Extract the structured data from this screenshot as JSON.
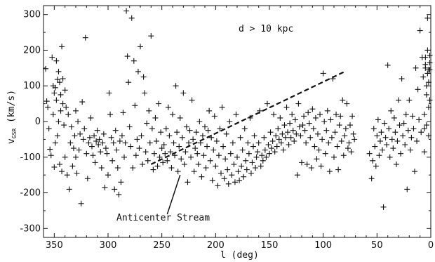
{
  "chart_data": {
    "type": "scatter",
    "title": "",
    "xlabel": "l (deg)",
    "ylabel_main": "v",
    "ylabel_sub": "GSR",
    "ylabel_unit": " (km/s)",
    "xlim": [
      360,
      0
    ],
    "ylim": [
      -325,
      325
    ],
    "x_reversed": true,
    "xticks": [
      350,
      300,
      250,
      200,
      150,
      100,
      50,
      0
    ],
    "yticks": [
      300,
      200,
      100,
      0,
      -100,
      -200,
      -300
    ],
    "grid": false,
    "marker": "plus",
    "color": "#111111",
    "annotations": {
      "distance_cut": "d > 10 kpc",
      "stream_label": "Anticenter Stream"
    },
    "trend_line": {
      "style": "dashed",
      "x": [
        260,
        80
      ],
      "y": [
        -120,
        140
      ]
    },
    "label_pointer": {
      "from": [
        245,
        -260
      ],
      "to": [
        233,
        -150
      ]
    },
    "points": [
      [
        358,
        148
      ],
      [
        357,
        57
      ],
      [
        356,
        40
      ],
      [
        355,
        -20
      ],
      [
        354,
        -78
      ],
      [
        353,
        -95
      ],
      [
        352,
        180
      ],
      [
        351,
        100
      ],
      [
        351,
        20
      ],
      [
        350,
        -128
      ],
      [
        350,
        80
      ],
      [
        349,
        95
      ],
      [
        349,
        -60
      ],
      [
        348,
        170
      ],
      [
        348,
        60
      ],
      [
        347,
        118
      ],
      [
        347,
        -40
      ],
      [
        346,
        140
      ],
      [
        346,
        0
      ],
      [
        345,
        110
      ],
      [
        345,
        -120
      ],
      [
        344,
        75
      ],
      [
        344,
        30
      ],
      [
        343,
        210
      ],
      [
        343,
        -140
      ],
      [
        342,
        120
      ],
      [
        342,
        50
      ],
      [
        341,
        -10
      ],
      [
        340,
        88
      ],
      [
        340,
        -100
      ],
      [
        339,
        40
      ],
      [
        338,
        -150
      ],
      [
        337,
        20
      ],
      [
        336,
        -190
      ],
      [
        335,
        -60
      ],
      [
        334,
        -15
      ],
      [
        333,
        -125
      ],
      [
        332,
        -75
      ],
      [
        331,
        -40
      ],
      [
        330,
        30
      ],
      [
        330,
        -100
      ],
      [
        329,
        -145
      ],
      [
        328,
        0
      ],
      [
        327,
        -80
      ],
      [
        326,
        -35
      ],
      [
        325,
        -230
      ],
      [
        324,
        55
      ],
      [
        323,
        -50
      ],
      [
        322,
        -20
      ],
      [
        321,
        235
      ],
      [
        320,
        -90
      ],
      [
        319,
        -160
      ],
      [
        318,
        -60
      ],
      [
        317,
        -45
      ],
      [
        316,
        10
      ],
      [
        315,
        -70
      ],
      [
        314,
        -95
      ],
      [
        313,
        -40
      ],
      [
        312,
        -115
      ],
      [
        311,
        -55
      ],
      [
        310,
        -25
      ],
      [
        309,
        -65
      ],
      [
        308,
        -50
      ],
      [
        307,
        -85
      ],
      [
        306,
        -130
      ],
      [
        305,
        -60
      ],
      [
        304,
        -35
      ],
      [
        303,
        -185
      ],
      [
        302,
        -75
      ],
      [
        301,
        -90
      ],
      [
        300,
        -150
      ],
      [
        299,
        80
      ],
      [
        298,
        20
      ],
      [
        297,
        -45
      ],
      [
        296,
        -110
      ],
      [
        295,
        -60
      ],
      [
        294,
        -190
      ],
      [
        293,
        -25
      ],
      [
        292,
        -80
      ],
      [
        291,
        -130
      ],
      [
        290,
        -205
      ],
      [
        289,
        -55
      ],
      [
        288,
        -170
      ],
      [
        287,
        -40
      ],
      [
        286,
        25
      ],
      [
        285,
        -100
      ],
      [
        284,
        -60
      ],
      [
        283,
        310
      ],
      [
        282,
        183
      ],
      [
        281,
        110
      ],
      [
        280,
        -15
      ],
      [
        279,
        -70
      ],
      [
        278,
        290
      ],
      [
        277,
        -130
      ],
      [
        276,
        170
      ],
      [
        275,
        45
      ],
      [
        274,
        -95
      ],
      [
        273,
        -50
      ],
      [
        272,
        140
      ],
      [
        271,
        -75
      ],
      [
        270,
        210
      ],
      [
        269,
        -40
      ],
      [
        268,
        -120
      ],
      [
        267,
        125
      ],
      [
        266,
        80
      ],
      [
        265,
        -85
      ],
      [
        264,
        -5
      ],
      [
        263,
        -110
      ],
      [
        262,
        30
      ],
      [
        261,
        -60
      ],
      [
        260,
        240
      ],
      [
        259,
        -20
      ],
      [
        258,
        -135
      ],
      [
        257,
        -90
      ],
      [
        256,
        10
      ],
      [
        255,
        -55
      ],
      [
        254,
        -125
      ],
      [
        253,
        50
      ],
      [
        252,
        -100
      ],
      [
        251,
        -30
      ],
      [
        250,
        -75
      ],
      [
        249,
        -115
      ],
      [
        248,
        -65
      ],
      [
        247,
        -90
      ],
      [
        246,
        -20
      ],
      [
        245,
        -110
      ],
      [
        244,
        40
      ],
      [
        243,
        -40
      ],
      [
        242,
        -85
      ],
      [
        241,
        -130
      ],
      [
        240,
        20
      ],
      [
        239,
        -60
      ],
      [
        238,
        -95
      ],
      [
        237,
        100
      ],
      [
        236,
        -30
      ],
      [
        235,
        -140
      ],
      [
        234,
        -70
      ],
      [
        233,
        10
      ],
      [
        232,
        -105
      ],
      [
        231,
        -45
      ],
      [
        230,
        80
      ],
      [
        229,
        -120
      ],
      [
        228,
        -85
      ],
      [
        227,
        -15
      ],
      [
        226,
        -170
      ],
      [
        225,
        -60
      ],
      [
        224,
        -25
      ],
      [
        223,
        -100
      ],
      [
        222,
        60
      ],
      [
        221,
        -50
      ],
      [
        220,
        -140
      ],
      [
        219,
        -75
      ],
      [
        218,
        -30
      ],
      [
        217,
        -90
      ],
      [
        216,
        -120
      ],
      [
        215,
        0
      ],
      [
        214,
        -60
      ],
      [
        213,
        -155
      ],
      [
        212,
        -40
      ],
      [
        211,
        -95
      ],
      [
        210,
        -15
      ],
      [
        209,
        -130
      ],
      [
        208,
        -70
      ],
      [
        207,
        -25
      ],
      [
        206,
        30
      ],
      [
        205,
        -110
      ],
      [
        204,
        -45
      ],
      [
        203,
        -165
      ],
      [
        202,
        -80
      ],
      [
        201,
        15
      ],
      [
        200,
        -125
      ],
      [
        199,
        -55
      ],
      [
        198,
        -180
      ],
      [
        197,
        -95
      ],
      [
        196,
        -20
      ],
      [
        195,
        -145
      ],
      [
        194,
        40
      ],
      [
        193,
        -70
      ],
      [
        192,
        -160
      ],
      [
        191,
        -105
      ],
      [
        190,
        -35
      ],
      [
        189,
        -135
      ],
      [
        188,
        -175
      ],
      [
        187,
        0
      ],
      [
        186,
        -90
      ],
      [
        185,
        -150
      ],
      [
        184,
        -60
      ],
      [
        183,
        -120
      ],
      [
        182,
        -170
      ],
      [
        181,
        20
      ],
      [
        180,
        -100
      ],
      [
        179,
        -140
      ],
      [
        178,
        -165
      ],
      [
        177,
        -45
      ],
      [
        176,
        -125
      ],
      [
        175,
        -80
      ],
      [
        174,
        -155
      ],
      [
        173,
        -20
      ],
      [
        172,
        -110
      ],
      [
        171,
        -135
      ],
      [
        170,
        -60
      ],
      [
        169,
        -90
      ],
      [
        168,
        10
      ],
      [
        167,
        -145
      ],
      [
        166,
        -115
      ],
      [
        165,
        -70
      ],
      [
        164,
        -40
      ],
      [
        163,
        -130
      ],
      [
        162,
        -100
      ],
      [
        161,
        -85
      ],
      [
        160,
        -60
      ],
      [
        159,
        30
      ],
      [
        158,
        -125
      ],
      [
        157,
        -95
      ],
      [
        156,
        -110
      ],
      [
        155,
        -45
      ],
      [
        154,
        -80
      ],
      [
        153,
        -100
      ],
      [
        152,
        50
      ],
      [
        151,
        -65
      ],
      [
        150,
        -90
      ],
      [
        149,
        -30
      ],
      [
        148,
        -75
      ],
      [
        147,
        -55
      ],
      [
        146,
        20
      ],
      [
        145,
        -85
      ],
      [
        144,
        -40
      ],
      [
        143,
        -70
      ],
      [
        142,
        -20
      ],
      [
        141,
        -50
      ],
      [
        140,
        10
      ],
      [
        139,
        -60
      ],
      [
        138,
        -35
      ],
      [
        137,
        -80
      ],
      [
        136,
        -10
      ],
      [
        135,
        -45
      ],
      [
        134,
        40
      ],
      [
        133,
        -30
      ],
      [
        132,
        -65
      ],
      [
        131,
        -5
      ],
      [
        130,
        -45
      ],
      [
        129,
        20
      ],
      [
        128,
        -25
      ],
      [
        127,
        -55
      ],
      [
        126,
        5
      ],
      [
        125,
        -35
      ],
      [
        124,
        -150
      ],
      [
        123,
        50
      ],
      [
        122,
        -15
      ],
      [
        121,
        -40
      ],
      [
        120,
        -115
      ],
      [
        119,
        -10
      ],
      [
        118,
        15
      ],
      [
        117,
        -25
      ],
      [
        116,
        -60
      ],
      [
        115,
        -120
      ],
      [
        114,
        25
      ],
      [
        113,
        -5
      ],
      [
        112,
        -45
      ],
      [
        111,
        -130
      ],
      [
        110,
        35
      ],
      [
        109,
        -20
      ],
      [
        108,
        -70
      ],
      [
        107,
        10
      ],
      [
        106,
        -105
      ],
      [
        105,
        -35
      ],
      [
        104,
        -80
      ],
      [
        103,
        20
      ],
      [
        102,
        -125
      ],
      [
        101,
        -50
      ],
      [
        100,
        135
      ],
      [
        99,
        0
      ],
      [
        98,
        -90
      ],
      [
        97,
        -25
      ],
      [
        96,
        30
      ],
      [
        95,
        -60
      ],
      [
        94,
        -140
      ],
      [
        93,
        5
      ],
      [
        92,
        -45
      ],
      [
        91,
        120
      ],
      [
        90,
        -100
      ],
      [
        89,
        -30
      ],
      [
        88,
        20
      ],
      [
        87,
        -70
      ],
      [
        86,
        -135
      ],
      [
        85,
        -10
      ],
      [
        84,
        15
      ],
      [
        83,
        -55
      ],
      [
        82,
        60
      ],
      [
        81,
        -95
      ],
      [
        80,
        -40
      ],
      [
        79,
        -20
      ],
      [
        78,
        50
      ],
      [
        77,
        -75
      ],
      [
        76,
        -60
      ],
      [
        75,
        -10
      ],
      [
        74,
        -85
      ],
      [
        73,
        15
      ],
      [
        72,
        -35
      ],
      [
        71,
        -50
      ],
      [
        57,
        -90
      ],
      [
        55,
        -160
      ],
      [
        54,
        -110
      ],
      [
        53,
        -20
      ],
      [
        52,
        -70
      ],
      [
        51,
        -125
      ],
      [
        50,
        -40
      ],
      [
        49,
        5
      ],
      [
        48,
        -95
      ],
      [
        47,
        -55
      ],
      [
        46,
        -30
      ],
      [
        45,
        -80
      ],
      [
        44,
        -240
      ],
      [
        43,
        -5
      ],
      [
        42,
        -45
      ],
      [
        41,
        -65
      ],
      [
        40,
        158
      ],
      [
        39,
        -20
      ],
      [
        38,
        -100
      ],
      [
        37,
        30
      ],
      [
        36,
        -50
      ],
      [
        35,
        -75
      ],
      [
        34,
        10
      ],
      [
        33,
        -30
      ],
      [
        32,
        -120
      ],
      [
        31,
        -55
      ],
      [
        30,
        60
      ],
      [
        29,
        -10
      ],
      [
        28,
        -90
      ],
      [
        27,
        120
      ],
      [
        26,
        -40
      ],
      [
        25,
        -5
      ],
      [
        24,
        -65
      ],
      [
        23,
        20
      ],
      [
        22,
        -190
      ],
      [
        21,
        -25
      ],
      [
        20,
        60
      ],
      [
        19,
        -80
      ],
      [
        18,
        -45
      ],
      [
        17,
        15
      ],
      [
        16,
        -20
      ],
      [
        15,
        -140
      ],
      [
        14,
        150
      ],
      [
        13,
        -55
      ],
      [
        12,
        90
      ],
      [
        11,
        5
      ],
      [
        10,
        255
      ],
      [
        9,
        -30
      ],
      [
        8,
        180
      ],
      [
        7,
        125
      ],
      [
        6,
        -85
      ],
      [
        5,
        160
      ],
      [
        4,
        -10
      ],
      [
        3,
        200
      ],
      [
        2,
        40
      ],
      [
        1,
        145
      ],
      [
        3,
        290
      ],
      [
        5,
        180
      ],
      [
        2,
        110
      ],
      [
        1,
        60
      ],
      [
        4,
        75
      ],
      [
        6,
        20
      ],
      [
        2,
        -40
      ],
      [
        1,
        165
      ],
      [
        3,
        135
      ],
      [
        4,
        100
      ],
      [
        2,
        145
      ],
      [
        5,
        150
      ],
      [
        1,
        185
      ],
      [
        6,
        -20
      ]
    ]
  }
}
